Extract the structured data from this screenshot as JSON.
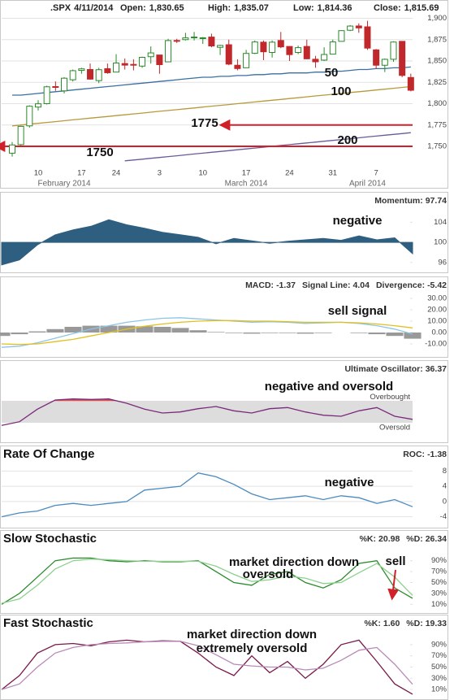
{
  "chart_data": [
    {
      "type": "candlestick",
      "symbol": ".SPX",
      "date": "4/11/2014",
      "stats": [
        {
          "label": "Open:",
          "value": "1,830.65"
        },
        {
          "label": "High:",
          "value": "1,835.07"
        },
        {
          "label": "Low:",
          "value": "1,814.36"
        },
        {
          "label": "Close:",
          "value": "1,815.69"
        }
      ],
      "categories": [
        null,
        null,
        null,
        "10",
        null,
        null,
        null,
        null,
        "17",
        null,
        null,
        null,
        "24",
        null,
        null,
        null,
        null,
        "3",
        null,
        null,
        null,
        null,
        "10",
        null,
        null,
        null,
        null,
        "17",
        null,
        null,
        null,
        null,
        "24",
        null,
        null,
        null,
        null,
        "31",
        null,
        null,
        null,
        null,
        "7",
        null,
        null,
        null,
        null
      ],
      "months": [
        "February 2014",
        "March 2014",
        "April 2014"
      ],
      "open": [
        1742,
        1752,
        1774,
        1796,
        1800,
        1820,
        1815,
        1828,
        1839,
        1840,
        1827,
        1841,
        1837,
        1847,
        1846,
        1844,
        1855,
        1857,
        1849,
        1874,
        1875,
        1878,
        1877,
        1878,
        1866,
        1869,
        1845,
        1842,
        1859,
        1872,
        1860,
        1874,
        1867,
        1860,
        1867,
        1852,
        1851,
        1858,
        1873,
        1886,
        1891,
        1890,
        1863,
        1845,
        1852,
        1873,
        1830.65
      ],
      "high": [
        1755,
        1774,
        1798,
        1804,
        1821,
        1826,
        1831,
        1840,
        1842,
        1847,
        1842,
        1847,
        1858,
        1853,
        1852,
        1855,
        1867,
        1857,
        1876,
        1876,
        1883,
        1884,
        1878,
        1882,
        1869,
        1875,
        1852,
        1863,
        1874,
        1874,
        1874,
        1884,
        1867,
        1868,
        1875,
        1856,
        1866,
        1875,
        1886,
        1892,
        1894,
        1897,
        1864,
        1853,
        1873,
        1873,
        1835.07
      ],
      "low": [
        1738,
        1751,
        1772,
        1792,
        1799,
        1815,
        1812,
        1826,
        1835,
        1828,
        1824,
        1835,
        1837,
        1840,
        1839,
        1842,
        1847,
        1835,
        1849,
        1871,
        1874,
        1874,
        1870,
        1866,
        1857,
        1845,
        1839,
        1842,
        1858,
        1851,
        1854,
        1865,
        1850,
        1858,
        1852,
        1842,
        1850,
        1858,
        1873,
        1885,
        1883,
        1863,
        1841,
        1837,
        1849,
        1831,
        1814.36
      ],
      "close": [
        1751.64,
        1773.43,
        1797.02,
        1799.84,
        1819.75,
        1819.26,
        1829.83,
        1838.63,
        1840.76,
        1828.75,
        1839.78,
        1836.25,
        1847.61,
        1845.12,
        1845.16,
        1854.29,
        1859.45,
        1845.73,
        1873.91,
        1873.81,
        1877.03,
        1878.04,
        1877.17,
        1867.63,
        1868.2,
        1846.34,
        1841.13,
        1858.83,
        1872.25,
        1860.77,
        1872.01,
        1866.52,
        1857.44,
        1865.62,
        1852.56,
        1849.04,
        1857.62,
        1872.34,
        1885.52,
        1890.9,
        1888.77,
        1865.09,
        1845.04,
        1851.96,
        1872.18,
        1833.08,
        1815.69
      ],
      "up_color": "#2a8a2a",
      "down_color": "#c0282c",
      "series": [
        {
          "name": "50",
          "color": "#3a6fa0",
          "values": [
            1810,
            1810,
            1811,
            1812,
            1813,
            1814,
            1815,
            1816,
            1817,
            1818,
            1819,
            1820,
            1821,
            1822,
            1823,
            1824,
            1825,
            1826,
            1827,
            1828,
            1829,
            1830,
            1831,
            1831,
            1832,
            1832,
            1833,
            1833,
            1834,
            1834,
            1835,
            1835,
            1836,
            1836,
            1836,
            1837,
            1837,
            1838,
            1838,
            1839,
            1840,
            1840,
            1841,
            1841,
            1842,
            1842,
            1843
          ]
        },
        {
          "name": "100",
          "color": "#b89a3a",
          "values": [
            1774,
            1775,
            1776,
            1777,
            1778,
            1779,
            1780,
            1781,
            1782,
            1783,
            1784,
            1785,
            1786,
            1787,
            1788,
            1789,
            1790,
            1791,
            1792,
            1793,
            1794,
            1795,
            1796,
            1797,
            1798,
            1799,
            1800,
            1801,
            1802,
            1803,
            1804,
            1805,
            1806,
            1807,
            1808,
            1809,
            1810,
            1811,
            1812,
            1813,
            1814,
            1815,
            1816,
            1817,
            1818,
            1819,
            1820
          ]
        },
        {
          "name": "200",
          "color": "#6a5a9a",
          "values": [
            null,
            null,
            null,
            null,
            null,
            null,
            null,
            null,
            null,
            null,
            null,
            null,
            null,
            1733,
            1734,
            1735,
            1736,
            1737,
            1738,
            1739,
            1740,
            1741,
            1742,
            1743,
            1744,
            1745,
            1746,
            1747,
            1748,
            1749,
            1750,
            1751,
            1752,
            1753,
            1754,
            1755,
            1756,
            1757,
            1758,
            1759,
            1760,
            1761,
            1762,
            1763,
            1764,
            1765,
            1766
          ]
        }
      ],
      "hlines": [
        {
          "value": 1775,
          "label": "1775",
          "color": "#d0202a"
        },
        {
          "value": 1750,
          "label": "1750",
          "color": "#d0202a"
        }
      ],
      "ylim": [
        1730,
        1910
      ],
      "yticks": [
        {
          "value": 1750,
          "label": "1,750"
        },
        {
          "value": 1775,
          "label": "1,775"
        },
        {
          "value": 1800,
          "label": "1,800"
        },
        {
          "value": 1825,
          "label": "1,825"
        },
        {
          "value": 1850,
          "label": "1,850"
        },
        {
          "value": 1875,
          "label": "1,875"
        },
        {
          "value": 1900,
          "label": "1,900"
        }
      ],
      "grid": true
    },
    {
      "type": "area",
      "indicators": [
        {
          "label": "Momentum:",
          "value": "97.74",
          "color": "#3a6fa0"
        }
      ],
      "annotations": [
        "negative"
      ],
      "baseline": 100,
      "series": [
        {
          "color": "#2e5f80",
          "values": [
            95.5,
            96.5,
            99.5,
            101.5,
            102.5,
            103.2,
            104.5,
            103.5,
            102.8,
            102,
            101.5,
            101,
            99.7,
            100.8,
            100.3,
            99.8,
            100.2,
            100.5,
            100.8,
            100.4,
            101.3,
            100.5,
            100.9,
            97.74
          ]
        }
      ],
      "ylim": [
        94.5,
        106.5
      ],
      "yticks": [
        96,
        100,
        104
      ]
    },
    {
      "type": "line",
      "indicators": [
        {
          "label": "MACD:",
          "value": "-1.37",
          "color": "#8ec4e8"
        },
        {
          "label": "Signal Line:",
          "value": "4.04",
          "color": "#e0c020"
        },
        {
          "label": "Divergence:",
          "value": "-5.42",
          "color": "#999999"
        }
      ],
      "annotations": [
        "sell signal"
      ],
      "series": [
        {
          "color": "#999999",
          "style": "bar",
          "values": [
            -3,
            -1.5,
            1,
            3,
            5,
            6,
            6,
            6,
            5.5,
            5,
            4,
            2,
            0.5,
            -0.5,
            -1,
            -0.5,
            -0.5,
            -1,
            -0.5,
            0,
            -0.5,
            -1.5,
            -3,
            -5.42
          ]
        },
        {
          "color": "#8ec4e8",
          "values": [
            -13,
            -12,
            -9,
            -5,
            -1,
            3,
            6,
            9,
            11,
            12.5,
            13,
            12,
            11,
            10,
            9,
            9.5,
            9,
            8,
            8.5,
            9,
            8,
            6,
            3,
            -1.37
          ]
        },
        {
          "color": "#e0c020",
          "values": [
            -10,
            -10.5,
            -10,
            -8,
            -6,
            -3,
            0,
            3,
            5.5,
            7.5,
            9,
            10,
            10.5,
            10.5,
            10,
            10,
            9.5,
            9,
            9,
            9,
            8.5,
            7.5,
            6,
            4.04
          ]
        }
      ],
      "ylim": [
        -15,
        35
      ],
      "yticks": [
        {
          "value": 30,
          "label": "30.00"
        },
        {
          "value": 20,
          "label": "20.00"
        },
        {
          "value": 10,
          "label": "10.00"
        },
        {
          "value": 0,
          "label": "0.00"
        },
        {
          "value": -10,
          "label": "-10.00"
        }
      ]
    },
    {
      "type": "line",
      "indicators": [
        {
          "label": "Ultimate Oscillator:",
          "value": "36.37",
          "color": "#7a2a7a"
        }
      ],
      "annotations": [
        "negative and oversold"
      ],
      "band": [
        30,
        70
      ],
      "band_labels": {
        "upper": "Overbought",
        "lower": "Oversold"
      },
      "band_color": "#dddddd",
      "overbought_color": "#e05050",
      "series": [
        {
          "color": "#7a2a7a",
          "values": [
            25,
            32,
            55,
            72,
            74,
            73,
            74,
            66,
            55,
            48,
            50,
            56,
            60,
            52,
            48,
            56,
            58,
            50,
            44,
            42,
            52,
            58,
            42,
            36.37
          ]
        }
      ],
      "ylim": [
        0,
        120
      ]
    },
    {
      "type": "line",
      "title": "Rate Of Change",
      "indicators": [
        {
          "label": "ROC:",
          "value": "-1.38",
          "color": "#3a6fa0"
        }
      ],
      "annotations": [
        "negative"
      ],
      "series": [
        {
          "color": "#4a8ac0",
          "values": [
            -4,
            -3,
            -2.5,
            -1,
            -0.5,
            -1,
            -0.5,
            0,
            3,
            3.5,
            4,
            7.5,
            6.5,
            4.5,
            2,
            0.5,
            1,
            1.5,
            0.5,
            1.5,
            1,
            -0.5,
            0.5,
            -1.38
          ]
        }
      ],
      "ylim": [
        -6,
        10
      ],
      "yticks": [
        8,
        4,
        0,
        -4
      ],
      "grid": true
    },
    {
      "type": "line",
      "title": "Slow Stochastic",
      "indicators": [
        {
          "label": "%K:",
          "value": "20.98",
          "color": "#2a8a2a"
        },
        {
          "label": "%D:",
          "value": "26.34",
          "color": "#7ac07a"
        }
      ],
      "annotations": [
        "market direction down",
        "oversold",
        "sell"
      ],
      "series": [
        {
          "color": "#2a8a2a",
          "values": [
            10,
            30,
            60,
            90,
            95,
            95,
            90,
            88,
            90,
            88,
            88,
            90,
            70,
            50,
            45,
            65,
            70,
            50,
            40,
            55,
            85,
            90,
            40,
            20.98
          ]
        },
        {
          "color": "#8ed08e",
          "values": [
            12,
            20,
            45,
            75,
            90,
            93,
            92,
            90,
            89,
            89,
            89,
            89,
            80,
            65,
            52,
            55,
            62,
            58,
            48,
            50,
            68,
            85,
            60,
            26.34
          ]
        }
      ],
      "ylim": [
        0,
        100
      ],
      "yticks": [
        {
          "value": 90,
          "label": "90%"
        },
        {
          "value": 70,
          "label": "70%"
        },
        {
          "value": 50,
          "label": "50%"
        },
        {
          "value": 30,
          "label": "30%"
        },
        {
          "value": 10,
          "label": "10%"
        }
      ]
    },
    {
      "type": "line",
      "title": "Fast Stochastic",
      "indicators": [
        {
          "label": "%K:",
          "value": "1.60",
          "color": "#7a1a4a"
        },
        {
          "label": "%D:",
          "value": "19.33",
          "color": "#a070a0"
        }
      ],
      "annotations": [
        "market direction down",
        "extremely oversold"
      ],
      "series": [
        {
          "color": "#7a1a4a",
          "values": [
            10,
            35,
            75,
            90,
            92,
            88,
            95,
            98,
            95,
            97,
            96,
            75,
            50,
            35,
            70,
            40,
            60,
            30,
            55,
            90,
            98,
            60,
            20,
            1.6
          ]
        },
        {
          "color": "#b88ab8",
          "values": [
            10,
            20,
            50,
            75,
            85,
            90,
            92,
            93,
            95,
            96,
            96,
            88,
            72,
            55,
            52,
            50,
            50,
            45,
            48,
            62,
            80,
            85,
            55,
            19.33
          ]
        }
      ],
      "ylim": [
        0,
        100
      ],
      "yticks": [
        {
          "value": 90,
          "label": "90%"
        },
        {
          "value": 70,
          "label": "70%"
        },
        {
          "value": 50,
          "label": "50%"
        },
        {
          "value": 30,
          "label": "30%"
        },
        {
          "value": 10,
          "label": "10%"
        }
      ]
    }
  ]
}
